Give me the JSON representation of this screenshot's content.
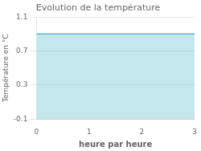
{
  "chart_data": {
    "type": "area",
    "title": "Evolution de la température",
    "xlabel": "heure par heure",
    "ylabel": "Température en °C",
    "x": [
      0,
      3
    ],
    "values": [
      0.9,
      0.9
    ],
    "color": "#55bbcc",
    "xlim": [
      0,
      3
    ],
    "ylim": [
      -0.1,
      1.1
    ],
    "xticks": [
      0,
      1,
      2,
      3
    ],
    "yticks": [
      -0.1,
      0.3,
      0.7,
      1.1
    ],
    "grid": "y"
  }
}
